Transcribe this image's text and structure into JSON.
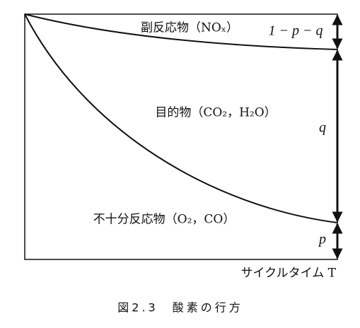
{
  "regions": {
    "by_product": "副反応物（NOₓ）",
    "target": "目的物（CO₂，H₂O）",
    "incomplete": "不十分反応物（O₂，CO）"
  },
  "arrows": {
    "top": "1 − p − q",
    "middle": "q",
    "bottom": "p"
  },
  "x_axis_label": "サイクルタイム T",
  "caption": "図2.3　酸素の行方"
}
